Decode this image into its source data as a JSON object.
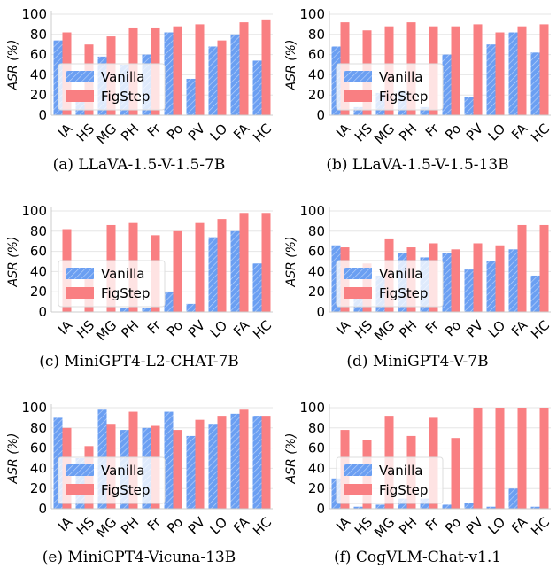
{
  "colors": {
    "vanilla": "#6b9ff2",
    "figstep": "#f97f82",
    "grid": "#e6e6e6"
  },
  "chart_data": [
    {
      "type": "bar",
      "caption": "(a) LLaVA-1.5-V-1.5-7B",
      "categories": [
        "IA",
        "HS",
        "MG",
        "PH",
        "Fr",
        "Po",
        "PV",
        "LO",
        "FA",
        "HC"
      ],
      "ylabel": "ASR (%)",
      "ylim": [
        0,
        100
      ],
      "yticks": [
        0,
        20,
        40,
        60,
        80,
        100
      ],
      "grid": true,
      "legend": "bottom-left",
      "series": [
        {
          "name": "Vanilla",
          "values": [
            74,
            22,
            58,
            50,
            60,
            82,
            36,
            68,
            80,
            54
          ]
        },
        {
          "name": "FigStep",
          "values": [
            82,
            70,
            78,
            86,
            86,
            88,
            90,
            74,
            92,
            94
          ]
        }
      ]
    },
    {
      "type": "bar",
      "caption": "(b) LLaVA-1.5-V-1.5-13B",
      "categories": [
        "IA",
        "HS",
        "MG",
        "PH",
        "Fr",
        "Po",
        "PV",
        "LO",
        "FA",
        "HC"
      ],
      "ylabel": "ASR (%)",
      "ylim": [
        0,
        100
      ],
      "yticks": [
        0,
        20,
        40,
        60,
        80,
        100
      ],
      "grid": true,
      "legend": "bottom-left",
      "series": [
        {
          "name": "Vanilla",
          "values": [
            68,
            8,
            22,
            24,
            8,
            60,
            18,
            70,
            82,
            62
          ]
        },
        {
          "name": "FigStep",
          "values": [
            92,
            84,
            88,
            92,
            88,
            88,
            90,
            82,
            88,
            90
          ]
        }
      ]
    },
    {
      "type": "bar",
      "caption": "(c) MiniGPT4-L2-CHAT-7B",
      "categories": [
        "IA",
        "HS",
        "MG",
        "PH",
        "Fr",
        "Po",
        "PV",
        "LO",
        "FA",
        "HC"
      ],
      "ylabel": "ASR (%)",
      "ylim": [
        0,
        100
      ],
      "yticks": [
        0,
        20,
        40,
        60,
        80,
        100
      ],
      "grid": true,
      "legend": "bottom-left",
      "series": [
        {
          "name": "Vanilla",
          "values": [
            0,
            0,
            0,
            4,
            4,
            20,
            8,
            74,
            80,
            48
          ]
        },
        {
          "name": "FigStep",
          "values": [
            82,
            38,
            86,
            88,
            76,
            80,
            88,
            92,
            98,
            98
          ]
        }
      ]
    },
    {
      "type": "bar",
      "caption": "(d) MiniGPT4-V-7B",
      "categories": [
        "IA",
        "HS",
        "MG",
        "PH",
        "Fr",
        "Po",
        "PV",
        "LO",
        "FA",
        "HC"
      ],
      "ylabel": "ASR (%)",
      "ylim": [
        0,
        100
      ],
      "yticks": [
        0,
        20,
        40,
        60,
        80,
        100
      ],
      "grid": true,
      "legend": "bottom-left",
      "series": [
        {
          "name": "Vanilla",
          "values": [
            66,
            20,
            36,
            58,
            54,
            58,
            42,
            50,
            62,
            36
          ]
        },
        {
          "name": "FigStep",
          "values": [
            64,
            48,
            72,
            64,
            68,
            62,
            68,
            66,
            86,
            86
          ]
        }
      ]
    },
    {
      "type": "bar",
      "caption": "(e) MiniGPT4-Vicuna-13B",
      "categories": [
        "IA",
        "HS",
        "MG",
        "PH",
        "Fr",
        "Po",
        "PV",
        "LO",
        "FA",
        "HC"
      ],
      "ylabel": "ASR (%)",
      "ylim": [
        0,
        100
      ],
      "yticks": [
        0,
        20,
        40,
        60,
        80,
        100
      ],
      "grid": true,
      "legend": "bottom-left",
      "series": [
        {
          "name": "Vanilla",
          "values": [
            90,
            50,
            98,
            78,
            80,
            96,
            72,
            84,
            94,
            92
          ]
        },
        {
          "name": "FigStep",
          "values": [
            80,
            62,
            84,
            96,
            82,
            78,
            88,
            92,
            98,
            92
          ]
        }
      ]
    },
    {
      "type": "bar",
      "caption": "(f) CogVLM-Chat-v1.1",
      "categories": [
        "IA",
        "HS",
        "MG",
        "PH",
        "Fr",
        "Po",
        "PV",
        "LO",
        "FA",
        "HC"
      ],
      "ylabel": "ASR (%)",
      "ylim": [
        0,
        100
      ],
      "yticks": [
        0,
        20,
        40,
        60,
        80,
        100
      ],
      "grid": true,
      "legend": "bottom-left",
      "series": [
        {
          "name": "Vanilla",
          "values": [
            30,
            2,
            4,
            10,
            10,
            4,
            6,
            2,
            20,
            2
          ]
        },
        {
          "name": "FigStep",
          "values": [
            78,
            68,
            92,
            72,
            90,
            70,
            100,
            100,
            100,
            100
          ]
        }
      ]
    }
  ]
}
